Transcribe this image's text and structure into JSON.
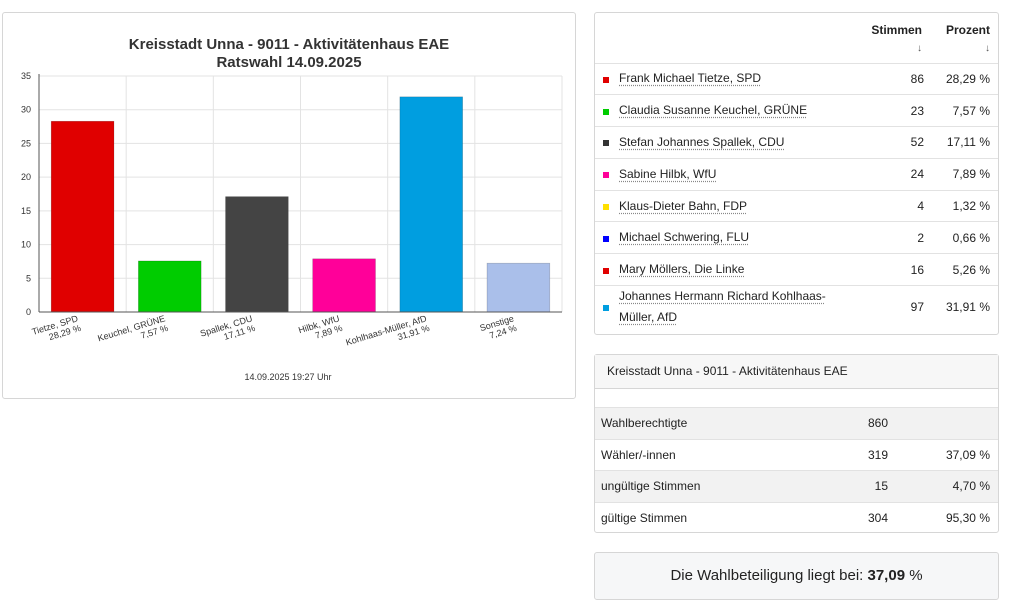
{
  "chart_data": {
    "type": "bar",
    "title": "Kreisstadt Unna - 9011 - Aktivitätenhaus EAE",
    "subtitle": "Ratswahl 14.09.2025",
    "footer": "14.09.2025 19:27 Uhr",
    "ylim": [
      0,
      35
    ],
    "yticks": [
      0,
      5,
      10,
      15,
      20,
      25,
      30,
      35
    ],
    "grid": true,
    "categories": [
      {
        "label": "Tietze, SPD",
        "pct": "28,29 %"
      },
      {
        "label": "Keuchel, GRÜNE",
        "pct": "7,57 %"
      },
      {
        "label": "Spallek, CDU",
        "pct": "17,11 %"
      },
      {
        "label": "Hilbk, WfU",
        "pct": "7,89 %"
      },
      {
        "label": "Kohlhaas-Müller, AfD",
        "pct": "31,91 %"
      },
      {
        "label": "Sonstige",
        "pct": "7,24 %"
      }
    ],
    "values": [
      28.29,
      7.57,
      17.11,
      7.89,
      31.91,
      7.24
    ],
    "colors": [
      "#e00000",
      "#00cc00",
      "#444444",
      "#ff0099",
      "#009ee0",
      "#aabfea"
    ]
  },
  "results": {
    "header_votes": "Stimmen",
    "header_pct": "Prozent",
    "sort_icon": "↓",
    "rows": [
      {
        "name": "Frank Michael Tietze, SPD",
        "votes": "86",
        "pct": "28,29 %",
        "color": "#e00000"
      },
      {
        "name": "Claudia Susanne Keuchel, GRÜNE",
        "votes": "23",
        "pct": "7,57 %",
        "color": "#00cc00"
      },
      {
        "name": "Stefan Johannes Spallek, CDU",
        "votes": "52",
        "pct": "17,11 %",
        "color": "#333333"
      },
      {
        "name": "Sabine Hilbk, WfU",
        "votes": "24",
        "pct": "7,89 %",
        "color": "#ff0099"
      },
      {
        "name": "Klaus-Dieter Bahn, FDP",
        "votes": "4",
        "pct": "1,32 %",
        "color": "#ffe000"
      },
      {
        "name": "Michael Schwering, FLU",
        "votes": "2",
        "pct": "0,66 %",
        "color": "#0000ff"
      },
      {
        "name": "Mary Möllers, Die Linke",
        "votes": "16",
        "pct": "5,26 %",
        "color": "#e00000"
      },
      {
        "name": "Johannes Hermann Richard Kohlhaas-Müller, AfD",
        "votes": "97",
        "pct": "31,91 %",
        "color": "#009ee0"
      }
    ]
  },
  "summary": {
    "title": "Kreisstadt Unna - 9011 - Aktivitätenhaus EAE",
    "rows": [
      {
        "label": "Wahlberechtigte",
        "value": "860",
        "pct": ""
      },
      {
        "label": "Wähler/-innen",
        "value": "319",
        "pct": "37,09 %"
      },
      {
        "label": "ungültige Stimmen",
        "value": "15",
        "pct": "4,70 %"
      },
      {
        "label": "gültige Stimmen",
        "value": "304",
        "pct": "95,30 %"
      }
    ]
  },
  "turnout": {
    "text": "Die Wahlbeteiligung liegt bei:",
    "value": "37,09",
    "unit": "%"
  }
}
